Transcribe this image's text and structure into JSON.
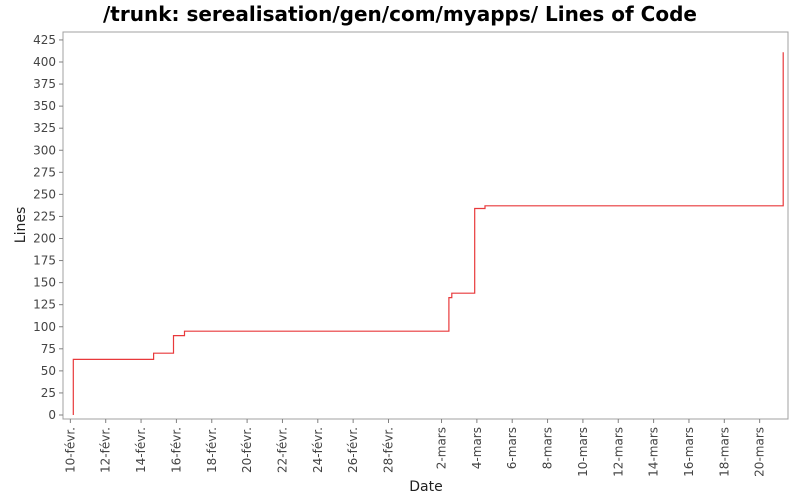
{
  "chart_data": {
    "type": "line",
    "title": "/trunk: serealisation/gen/com/myapps/ Lines of Code",
    "xlabel": "Date",
    "ylabel": "Lines",
    "ylim": [
      0,
      435
    ],
    "y_ticks": [
      0,
      25,
      50,
      75,
      100,
      125,
      150,
      175,
      200,
      225,
      250,
      275,
      300,
      325,
      350,
      375,
      400,
      425
    ],
    "x_range": [
      "2008-02-09T14:00",
      "2008-03-21T14:30"
    ],
    "x_ticks": [
      {
        "date": "2008-02-10",
        "label": "10-févr."
      },
      {
        "date": "2008-02-12",
        "label": "12-févr."
      },
      {
        "date": "2008-02-14",
        "label": "14-févr."
      },
      {
        "date": "2008-02-16",
        "label": "16-févr."
      },
      {
        "date": "2008-02-18",
        "label": "18-févr."
      },
      {
        "date": "2008-02-20",
        "label": "20-févr."
      },
      {
        "date": "2008-02-22",
        "label": "22-févr."
      },
      {
        "date": "2008-02-24",
        "label": "24-févr."
      },
      {
        "date": "2008-02-26",
        "label": "26-févr."
      },
      {
        "date": "2008-02-28",
        "label": "28-févr."
      },
      {
        "date": "2008-03-02",
        "label": "2-mars"
      },
      {
        "date": "2008-03-04",
        "label": "4-mars"
      },
      {
        "date": "2008-03-06",
        "label": "6-mars"
      },
      {
        "date": "2008-03-08",
        "label": "8-mars"
      },
      {
        "date": "2008-03-10",
        "label": "10-mars"
      },
      {
        "date": "2008-03-12",
        "label": "12-mars"
      },
      {
        "date": "2008-03-14",
        "label": "14-mars"
      },
      {
        "date": "2008-03-16",
        "label": "16-mars"
      },
      {
        "date": "2008-03-18",
        "label": "18-mars"
      },
      {
        "date": "2008-03-20",
        "label": "20-mars"
      }
    ],
    "step": true,
    "grid": false,
    "series": [
      {
        "color": "#e8393b",
        "points": [
          {
            "x": "2008-02-10T04:00",
            "y": 0
          },
          {
            "x": "2008-02-10T04:00",
            "y": 63
          },
          {
            "x": "2008-02-14T17:00",
            "y": 70
          },
          {
            "x": "2008-02-15T20:00",
            "y": 90
          },
          {
            "x": "2008-02-16T11:00",
            "y": 95
          },
          {
            "x": "2008-03-02T10:00",
            "y": 133
          },
          {
            "x": "2008-03-02T14:00",
            "y": 138
          },
          {
            "x": "2008-03-03T21:00",
            "y": 234
          },
          {
            "x": "2008-03-04T11:00",
            "y": 237
          },
          {
            "x": "2008-03-21T08:00",
            "y": 237
          },
          {
            "x": "2008-03-21T08:00",
            "y": 411
          }
        ]
      }
    ]
  }
}
